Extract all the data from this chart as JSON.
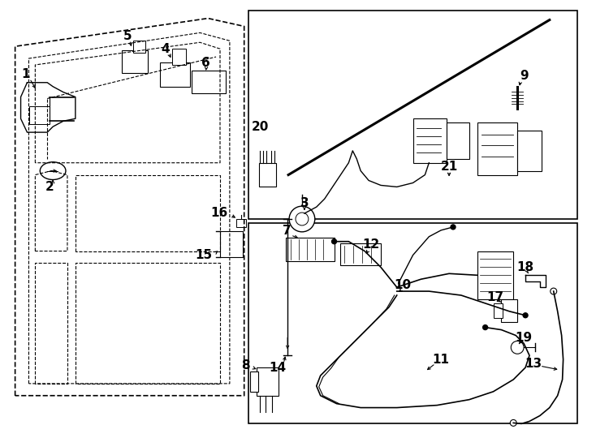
{
  "background_color": "#ffffff",
  "line_color": "#000000",
  "fig_width": 7.34,
  "fig_height": 5.4,
  "dpi": 100
}
